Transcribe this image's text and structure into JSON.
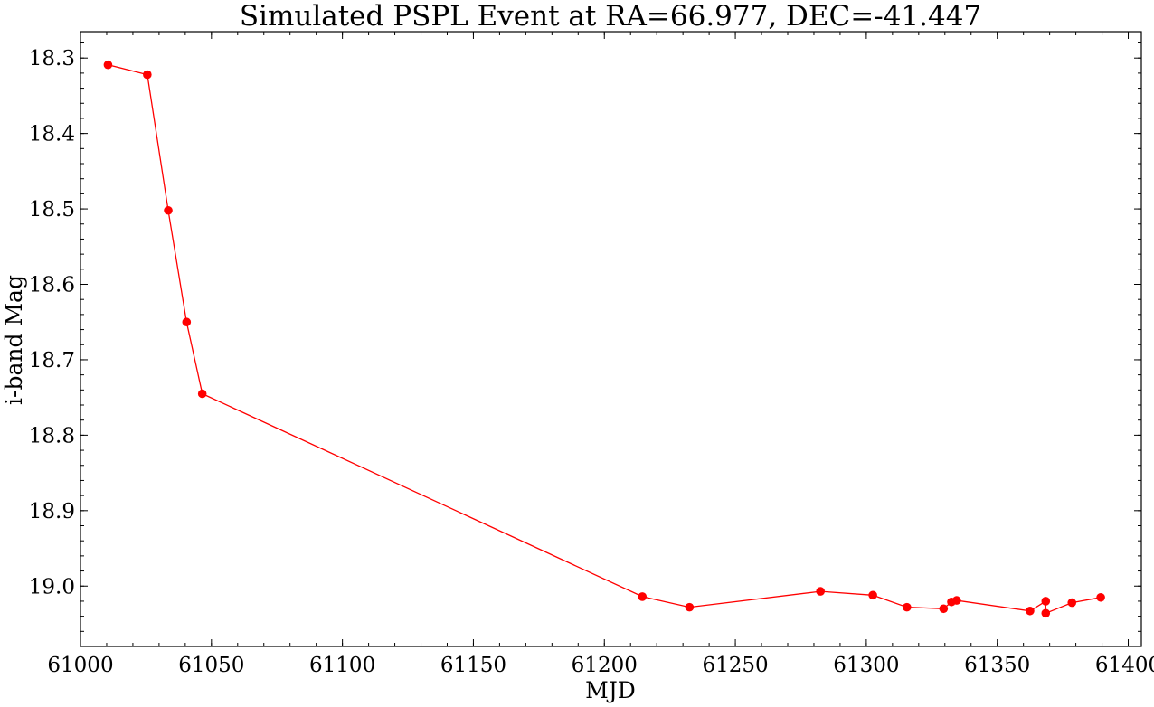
{
  "chart_data": {
    "type": "line",
    "title": "Simulated PSPL Event at RA=66.977, DEC=-41.447",
    "xlabel": "MJD",
    "ylabel": "i-band Mag",
    "xlim": [
      61000,
      61405
    ],
    "ylim": [
      19.08,
      18.265
    ],
    "y_inverted": true,
    "x_ticks": [
      61000,
      61050,
      61100,
      61150,
      61200,
      61250,
      61300,
      61350,
      61400
    ],
    "x_minor_step": 10,
    "y_ticks": [
      18.3,
      18.4,
      18.5,
      18.6,
      18.7,
      18.8,
      18.9,
      19.0
    ],
    "y_minor_step": 0.02,
    "grid": false,
    "series": [
      {
        "color": "#ff0000",
        "marker": "circle",
        "x": [
          61010.5,
          61025.5,
          61033.5,
          61040.5,
          61046.5,
          61214.5,
          61232.5,
          61282.5,
          61302.5,
          61315.5,
          61329.5,
          61332.5,
          61334.5,
          61362.5,
          61368.5,
          61368.5,
          61378.5,
          61389.5
        ],
        "y": [
          18.309,
          18.322,
          18.502,
          18.65,
          18.745,
          19.014,
          19.028,
          19.007,
          19.012,
          19.028,
          19.03,
          19.021,
          19.019,
          19.033,
          19.02,
          19.036,
          19.022,
          19.015
        ]
      }
    ]
  }
}
